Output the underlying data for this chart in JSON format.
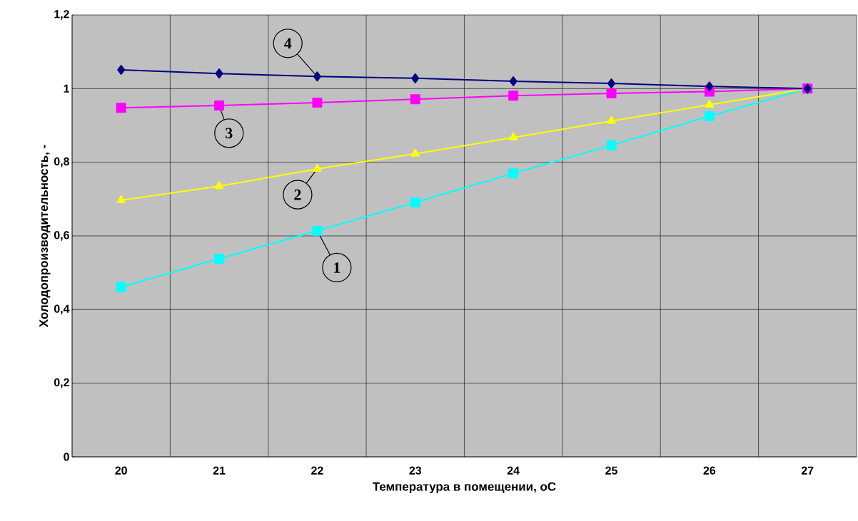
{
  "chart_data": {
    "type": "line",
    "xlabel": "Температура в помещении, оС",
    "ylabel": "Холодопроизводительность, -",
    "categories": [
      "20",
      "21",
      "22",
      "23",
      "24",
      "25",
      "26",
      "27"
    ],
    "series": [
      {
        "color": "#000080",
        "marker": "diamond",
        "values": [
          1.051,
          1.041,
          1.033,
          1.028,
          1.02,
          1.014,
          1.006,
          1.0
        ]
      },
      {
        "color": "#ff00ff",
        "marker": "square",
        "values": [
          0.948,
          0.954,
          0.962,
          0.971,
          0.981,
          0.987,
          0.992,
          1.0
        ]
      },
      {
        "color": "#ffff00",
        "marker": "triangle",
        "values": [
          0.697,
          0.735,
          0.782,
          0.823,
          0.867,
          0.912,
          0.956,
          1.0
        ]
      },
      {
        "color": "#00ffff",
        "marker": "square",
        "values": [
          0.461,
          0.538,
          0.614,
          0.691,
          0.77,
          0.846,
          0.925,
          1.0
        ]
      }
    ],
    "ylim": [
      0,
      1.2
    ],
    "yticks": [
      0,
      {
        "value": 0.2,
        "label": "0,2"
      },
      {
        "value": 0.4,
        "label": "0,4"
      },
      {
        "value": 0.6,
        "label": "0,6"
      },
      {
        "value": 0.8,
        "label": "0,8"
      },
      1,
      {
        "value": 1.2,
        "label": "1,2"
      }
    ],
    "grid": true,
    "annotations": [
      {
        "text": "4",
        "x": "22",
        "y": 1.033
      },
      {
        "text": "3",
        "x": "21",
        "y": 0.954
      },
      {
        "text": "2",
        "x": "22",
        "y": 0.782
      },
      {
        "text": "1",
        "x": "22",
        "y": 0.614
      }
    ]
  }
}
